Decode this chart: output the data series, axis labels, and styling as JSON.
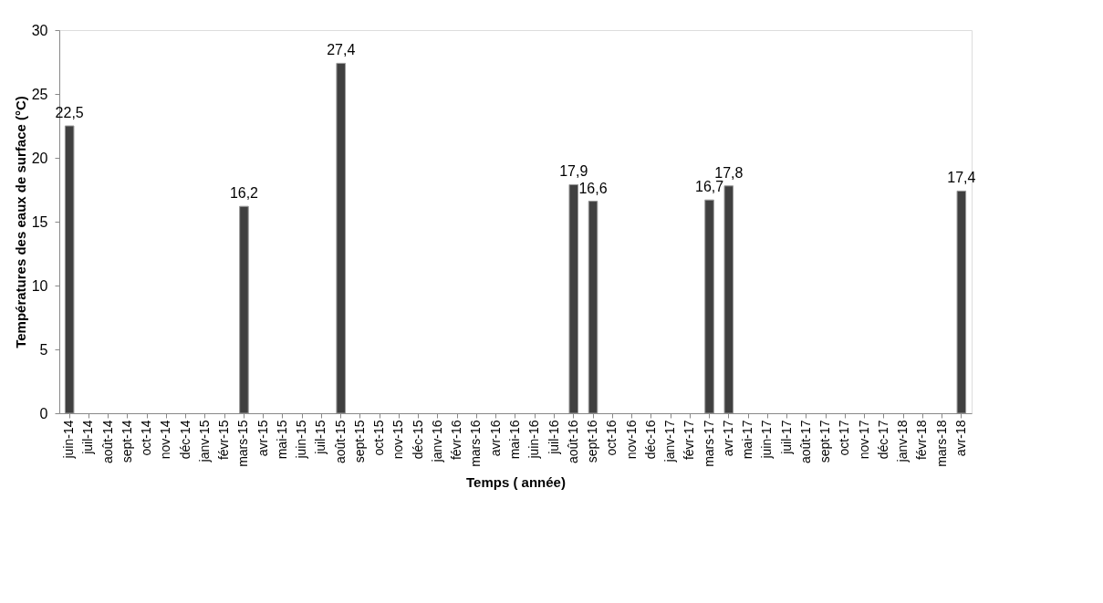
{
  "chart_data": {
    "type": "bar",
    "xlabel": "Temps ( année)",
    "ylabel": "Températures des eaux de surface (°C)",
    "categories": [
      "juin-14",
      "juil-14",
      "août-14",
      "sept-14",
      "oct-14",
      "nov-14",
      "déc-14",
      "janv-15",
      "févr-15",
      "mars-15",
      "avr-15",
      "mai-15",
      "juin-15",
      "juil-15",
      "août-15",
      "sept-15",
      "oct-15",
      "nov-15",
      "déc-15",
      "janv-16",
      "févr-16",
      "mars-16",
      "avr-16",
      "mai-16",
      "juin-16",
      "juil-16",
      "août-16",
      "sept-16",
      "oct-16",
      "nov-16",
      "déc-16",
      "janv-17",
      "févr-17",
      "mars-17",
      "avr-17",
      "mai-17",
      "juin-17",
      "juil-17",
      "août-17",
      "sept-17",
      "oct-17",
      "nov-17",
      "déc-17",
      "janv-18",
      "févr-18",
      "mars-18",
      "avr-18"
    ],
    "values": [
      22.5,
      null,
      null,
      null,
      null,
      null,
      null,
      null,
      null,
      16.2,
      null,
      null,
      null,
      null,
      27.4,
      null,
      null,
      null,
      null,
      null,
      null,
      null,
      null,
      null,
      null,
      null,
      17.9,
      16.6,
      null,
      null,
      null,
      null,
      null,
      16.7,
      17.8,
      null,
      null,
      null,
      null,
      null,
      null,
      null,
      null,
      null,
      null,
      null,
      17.4
    ],
    "value_labels": [
      "22,5",
      null,
      null,
      null,
      null,
      null,
      null,
      null,
      null,
      "16,2",
      null,
      null,
      null,
      null,
      "27,4",
      null,
      null,
      null,
      null,
      null,
      null,
      null,
      null,
      null,
      null,
      null,
      "17,9",
      "16,6",
      null,
      null,
      null,
      null,
      null,
      "16,7",
      "17,8",
      null,
      null,
      null,
      null,
      null,
      null,
      null,
      null,
      null,
      null,
      null,
      "17,4"
    ],
    "color": "#404040",
    "ylim": [
      0,
      30
    ],
    "yticks": [
      0,
      5,
      10,
      15,
      20,
      25,
      30
    ],
    "grid": false
  }
}
